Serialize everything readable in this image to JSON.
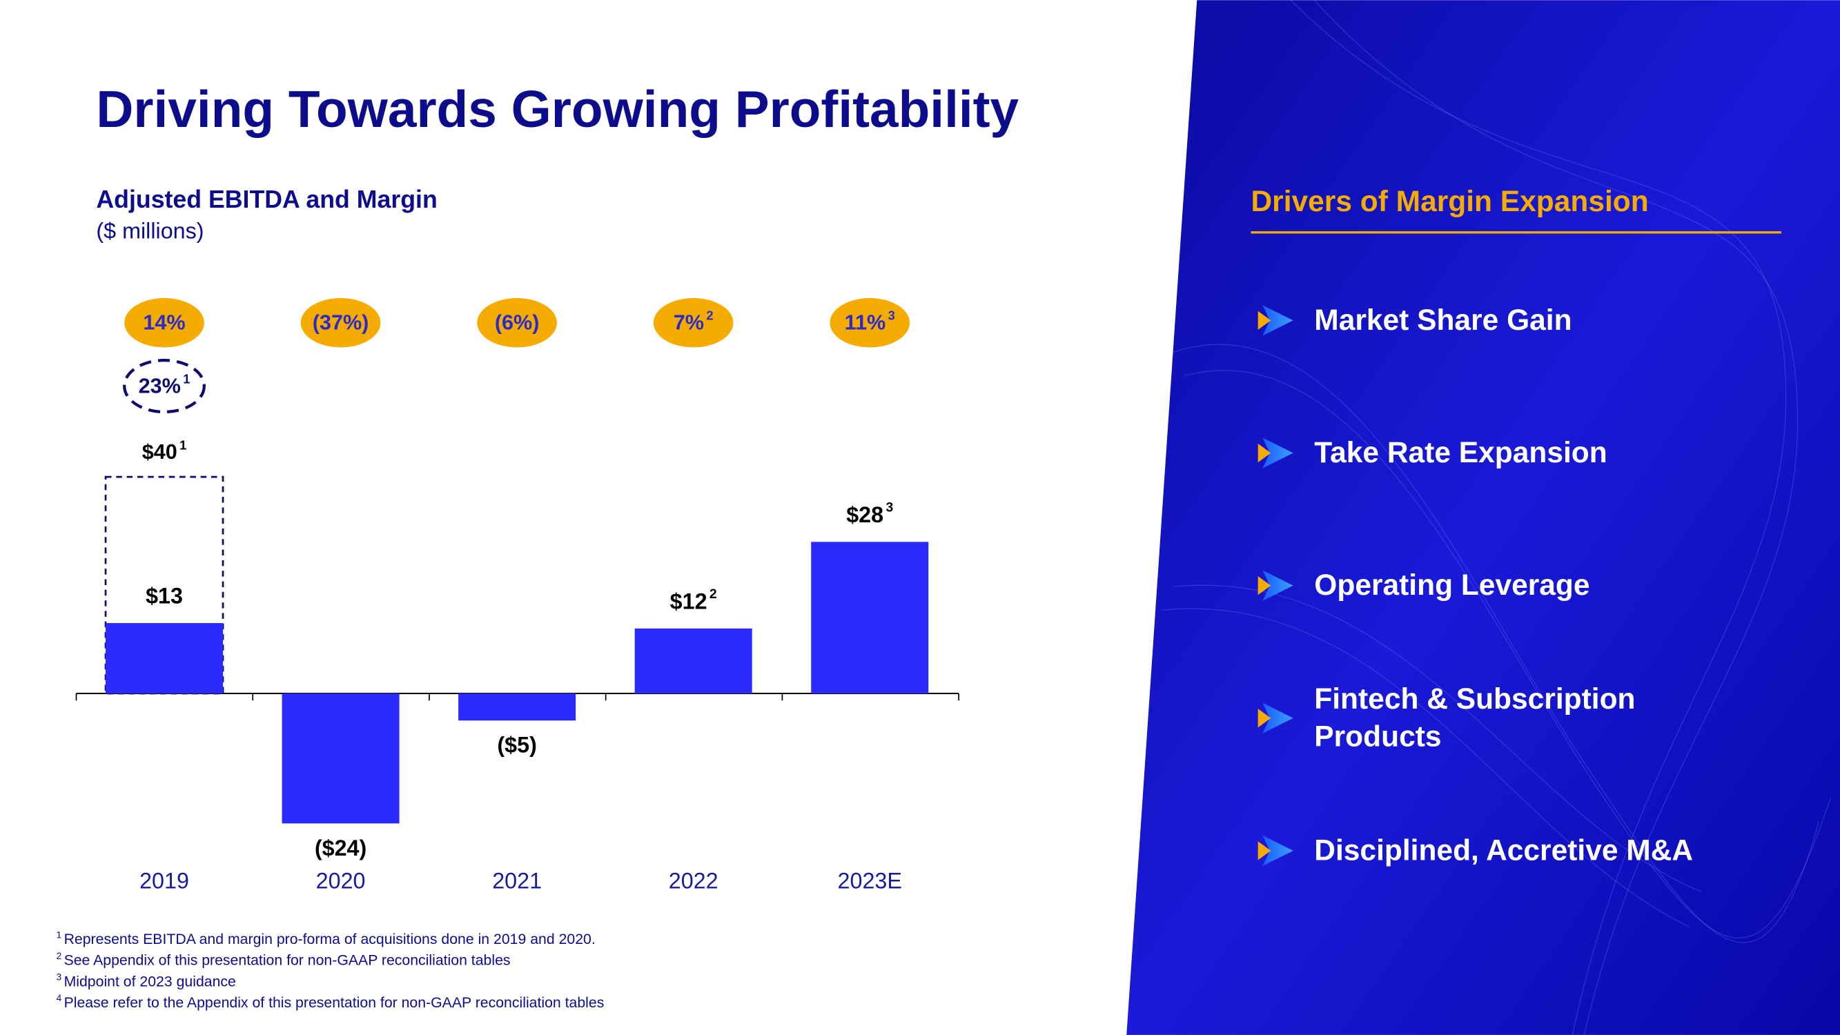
{
  "title": "Driving Towards Growing Profitability",
  "chart_data": {
    "type": "bar",
    "title": "Adjusted EBITDA and Margin",
    "subtitle": "($ millions)",
    "categories": [
      "2019",
      "2020",
      "2021",
      "2022",
      "2023E"
    ],
    "values": [
      13,
      -24,
      -5,
      12,
      28
    ],
    "value_labels": [
      "$13",
      "($24)",
      "($5)",
      "$12",
      "$28"
    ],
    "value_footnotes": [
      null,
      null,
      null,
      "2",
      "3"
    ],
    "margins": [
      14,
      -37,
      -6,
      7,
      11
    ],
    "margin_labels": [
      "14%",
      "(37%)",
      "(6%)",
      "7%",
      "11%"
    ],
    "margin_footnotes": [
      null,
      null,
      null,
      "2",
      "3"
    ],
    "pro_forma": {
      "value": 40,
      "value_label": "$40",
      "value_footnote": "1",
      "margin": 23,
      "margin_label": "23%",
      "margin_footnote": "1"
    },
    "color": "#2b2bff",
    "margin_color": "#f5ab00"
  },
  "footnotes": [
    {
      "mark": "1",
      "text": "Represents EBITDA and margin pro-forma of acquisitions done in 2019 and 2020."
    },
    {
      "mark": "2",
      "text": "See Appendix of this presentation for non-GAAP reconciliation tables"
    },
    {
      "mark": "3",
      "text": "Midpoint of 2023 guidance"
    },
    {
      "mark": "4",
      "text": "Please refer to the Appendix of this presentation for non-GAAP reconciliation tables"
    }
  ],
  "drivers": {
    "title": "Drivers of Margin Expansion",
    "items": [
      "Market Share Gain",
      "Take Rate Expansion",
      "Operating Leverage",
      "Fintech & Subscription Products",
      "Disciplined, Accretive M&A"
    ]
  }
}
